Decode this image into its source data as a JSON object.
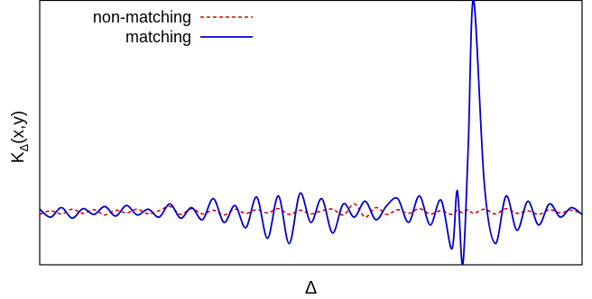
{
  "chart_data": {
    "type": "line",
    "title": "",
    "xlabel": "Δ",
    "ylabel": "K_Δ(x,y)",
    "ylabel_main": "K",
    "ylabel_sub": "Δ",
    "ylabel_tail": "(x,y)",
    "xlim": [
      0,
      1
    ],
    "ylim": [
      -1,
      4
    ],
    "grid": false,
    "legend_position": "top-left",
    "x": [
      0.0,
      0.02,
      0.04,
      0.06,
      0.08,
      0.1,
      0.12,
      0.14,
      0.16,
      0.18,
      0.2,
      0.22,
      0.24,
      0.26,
      0.28,
      0.3,
      0.32,
      0.34,
      0.36,
      0.38,
      0.4,
      0.42,
      0.44,
      0.46,
      0.48,
      0.5,
      0.52,
      0.54,
      0.56,
      0.58,
      0.6,
      0.62,
      0.64,
      0.66,
      0.68,
      0.7,
      0.72,
      0.74,
      0.76,
      0.77,
      0.78,
      0.79,
      0.8,
      0.82,
      0.84,
      0.86,
      0.88,
      0.9,
      0.92,
      0.94,
      0.96,
      0.98,
      1.0
    ],
    "series": [
      {
        "name": "non-matching",
        "color": "#dd0000",
        "dash": "dashed",
        "values": [
          -0.05,
          0.02,
          -0.04,
          0.05,
          -0.03,
          0.04,
          -0.06,
          0.03,
          -0.02,
          0.05,
          -0.04,
          0.02,
          0.1,
          -0.05,
          0.06,
          -0.04,
          0.03,
          -0.06,
          0.05,
          -0.03,
          0.04,
          -0.02,
          0.06,
          -0.05,
          0.03,
          -0.04,
          0.02,
          0.05,
          -0.06,
          0.15,
          -0.1,
          0.08,
          -0.05,
          0.04,
          -0.03,
          0.06,
          -0.04,
          0.02,
          -0.05,
          0.03,
          -0.02,
          0.04,
          -0.03,
          0.05,
          -0.04,
          0.06,
          -0.03,
          0.02,
          -0.05,
          0.04,
          -0.02,
          0.03,
          -0.04
        ]
      },
      {
        "name": "matching",
        "color": "#0000cc",
        "dash": "solid",
        "values": [
          0.05,
          -0.1,
          0.08,
          -0.12,
          0.06,
          -0.05,
          0.1,
          -0.08,
          0.12,
          -0.06,
          0.05,
          -0.1,
          0.15,
          -0.12,
          0.08,
          -0.15,
          0.25,
          -0.2,
          0.12,
          -0.3,
          0.28,
          -0.5,
          0.3,
          -0.6,
          0.35,
          -0.2,
          0.25,
          -0.4,
          0.15,
          -0.1,
          0.2,
          -0.15,
          0.12,
          0.25,
          -0.2,
          0.3,
          -0.25,
          0.22,
          -0.7,
          0.4,
          -1.0,
          1.2,
          4.0,
          0.5,
          -0.6,
          0.3,
          -0.35,
          0.2,
          -0.25,
          0.15,
          -0.1,
          0.08,
          -0.05
        ]
      }
    ]
  }
}
